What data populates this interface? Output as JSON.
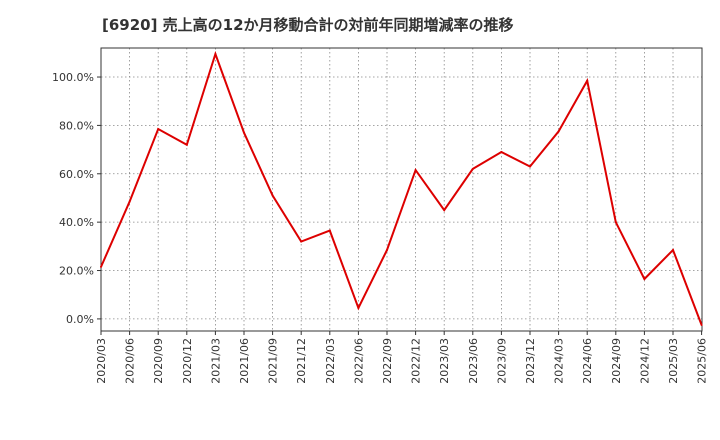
{
  "chart_data": {
    "type": "line",
    "title": "[6920]  売上高の12か月移動合計の対前年同期増減率の推移",
    "xlabel": "",
    "ylabel": "",
    "ylim": [
      -5,
      112
    ],
    "y_ticks": [
      0,
      20,
      40,
      60,
      80,
      100
    ],
    "y_tick_labels": [
      "0.0%",
      "20.0%",
      "40.0%",
      "60.0%",
      "80.0%",
      "100.0%"
    ],
    "x_tick_labels": [
      "2020/03",
      "2020/06",
      "2020/09",
      "2020/12",
      "2021/03",
      "2021/06",
      "2021/09",
      "2021/12",
      "2022/03",
      "2022/06",
      "2022/09",
      "2022/12",
      "2023/03",
      "2023/06",
      "2023/09",
      "2023/12",
      "2024/03",
      "2024/06",
      "2024/09",
      "2024/12",
      "2025/03",
      "2025/06"
    ],
    "series": [
      {
        "name": "対前年同期増減率",
        "color": "#dd0000",
        "values": [
          21.5,
          48.5,
          78.5,
          72,
          109.5,
          77,
          51,
          32,
          36.5,
          4.5,
          28.5,
          61.5,
          45,
          62,
          69,
          63,
          77.5,
          98.5,
          40,
          16.5,
          28.5,
          -2.5
        ]
      }
    ],
    "grid": true
  }
}
